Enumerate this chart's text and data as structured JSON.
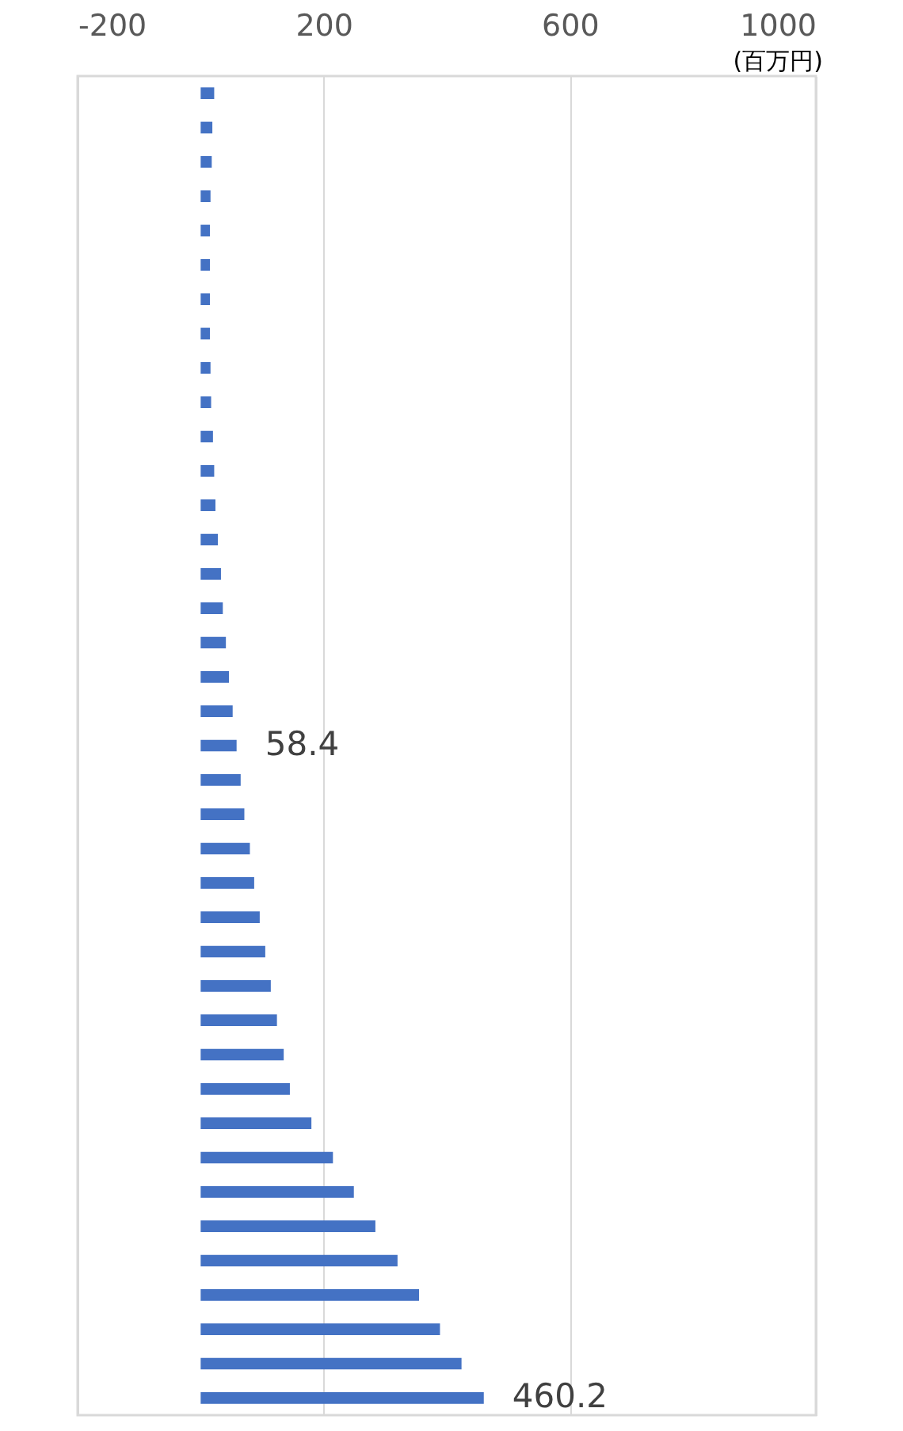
{
  "chart_data": {
    "type": "bar",
    "orientation": "horizontal",
    "xlabel": "(百万円)",
    "categories": [
      null,
      null,
      null,
      null,
      null,
      null,
      null,
      null,
      null,
      null,
      null,
      null,
      null,
      null,
      null,
      null,
      null,
      null,
      null,
      null,
      null,
      null,
      null,
      null,
      null,
      null,
      null,
      null,
      null,
      null,
      null,
      null,
      null,
      null,
      null,
      null,
      null,
      null,
      null
    ],
    "series": [
      {
        "color": "#4472c4",
        "values": [
          22,
          19,
          18,
          16,
          15,
          15,
          15,
          15,
          16,
          17,
          20,
          22,
          24,
          28,
          33,
          36,
          41,
          46,
          52,
          58.4,
          65,
          71,
          80,
          87,
          96,
          105,
          114,
          124,
          135,
          145,
          180,
          215,
          249,
          284,
          320,
          355,
          389,
          424,
          460.2
        ],
        "value_labels": [
          null,
          null,
          null,
          null,
          null,
          null,
          null,
          null,
          null,
          null,
          null,
          null,
          null,
          null,
          null,
          null,
          null,
          null,
          null,
          "58.4",
          null,
          null,
          null,
          null,
          null,
          null,
          null,
          null,
          null,
          null,
          null,
          null,
          null,
          null,
          null,
          null,
          null,
          null,
          "460.2"
        ]
      }
    ],
    "xlim": [
      -200,
      1000
    ],
    "xticks": [
      -200,
      200,
      600,
      1000
    ],
    "grid": "x",
    "tick_labels": "x"
  }
}
